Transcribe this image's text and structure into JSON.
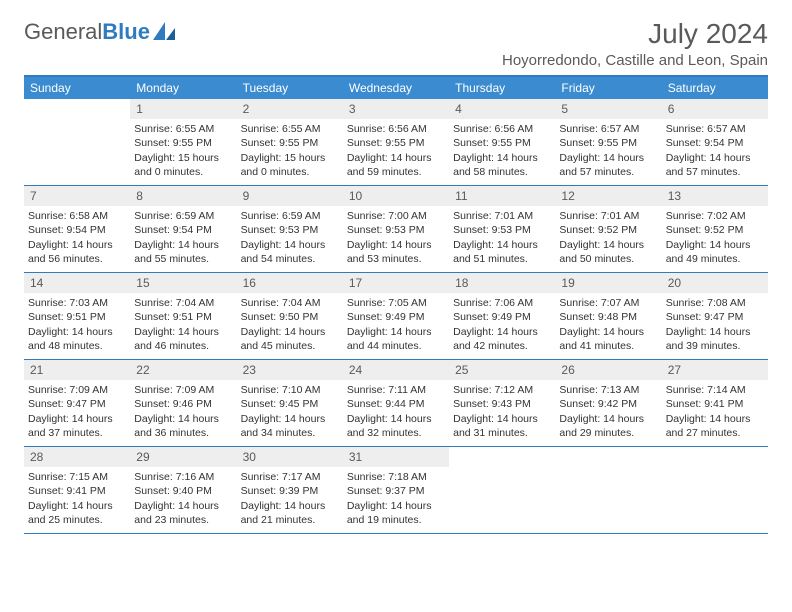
{
  "brand": {
    "part1": "General",
    "part2": "Blue"
  },
  "title": "July 2024",
  "location": "Hoyorredondo, Castille and Leon, Spain",
  "colors": {
    "header_bg": "#3b8bd0",
    "rule": "#2f7bbf",
    "daynum_bg": "#eeeeee",
    "text": "#333333",
    "muted": "#5a5a5a"
  },
  "typography": {
    "title_fontsize": 28,
    "body_fontsize": 10.5
  },
  "dow": [
    "Sunday",
    "Monday",
    "Tuesday",
    "Wednesday",
    "Thursday",
    "Friday",
    "Saturday"
  ],
  "weeks": [
    [
      null,
      {
        "n": "1",
        "sr": "6:55 AM",
        "ss": "9:55 PM",
        "dl": "15 hours and 0 minutes."
      },
      {
        "n": "2",
        "sr": "6:55 AM",
        "ss": "9:55 PM",
        "dl": "15 hours and 0 minutes."
      },
      {
        "n": "3",
        "sr": "6:56 AM",
        "ss": "9:55 PM",
        "dl": "14 hours and 59 minutes."
      },
      {
        "n": "4",
        "sr": "6:56 AM",
        "ss": "9:55 PM",
        "dl": "14 hours and 58 minutes."
      },
      {
        "n": "5",
        "sr": "6:57 AM",
        "ss": "9:55 PM",
        "dl": "14 hours and 57 minutes."
      },
      {
        "n": "6",
        "sr": "6:57 AM",
        "ss": "9:54 PM",
        "dl": "14 hours and 57 minutes."
      }
    ],
    [
      {
        "n": "7",
        "sr": "6:58 AM",
        "ss": "9:54 PM",
        "dl": "14 hours and 56 minutes."
      },
      {
        "n": "8",
        "sr": "6:59 AM",
        "ss": "9:54 PM",
        "dl": "14 hours and 55 minutes."
      },
      {
        "n": "9",
        "sr": "6:59 AM",
        "ss": "9:53 PM",
        "dl": "14 hours and 54 minutes."
      },
      {
        "n": "10",
        "sr": "7:00 AM",
        "ss": "9:53 PM",
        "dl": "14 hours and 53 minutes."
      },
      {
        "n": "11",
        "sr": "7:01 AM",
        "ss": "9:53 PM",
        "dl": "14 hours and 51 minutes."
      },
      {
        "n": "12",
        "sr": "7:01 AM",
        "ss": "9:52 PM",
        "dl": "14 hours and 50 minutes."
      },
      {
        "n": "13",
        "sr": "7:02 AM",
        "ss": "9:52 PM",
        "dl": "14 hours and 49 minutes."
      }
    ],
    [
      {
        "n": "14",
        "sr": "7:03 AM",
        "ss": "9:51 PM",
        "dl": "14 hours and 48 minutes."
      },
      {
        "n": "15",
        "sr": "7:04 AM",
        "ss": "9:51 PM",
        "dl": "14 hours and 46 minutes."
      },
      {
        "n": "16",
        "sr": "7:04 AM",
        "ss": "9:50 PM",
        "dl": "14 hours and 45 minutes."
      },
      {
        "n": "17",
        "sr": "7:05 AM",
        "ss": "9:49 PM",
        "dl": "14 hours and 44 minutes."
      },
      {
        "n": "18",
        "sr": "7:06 AM",
        "ss": "9:49 PM",
        "dl": "14 hours and 42 minutes."
      },
      {
        "n": "19",
        "sr": "7:07 AM",
        "ss": "9:48 PM",
        "dl": "14 hours and 41 minutes."
      },
      {
        "n": "20",
        "sr": "7:08 AM",
        "ss": "9:47 PM",
        "dl": "14 hours and 39 minutes."
      }
    ],
    [
      {
        "n": "21",
        "sr": "7:09 AM",
        "ss": "9:47 PM",
        "dl": "14 hours and 37 minutes."
      },
      {
        "n": "22",
        "sr": "7:09 AM",
        "ss": "9:46 PM",
        "dl": "14 hours and 36 minutes."
      },
      {
        "n": "23",
        "sr": "7:10 AM",
        "ss": "9:45 PM",
        "dl": "14 hours and 34 minutes."
      },
      {
        "n": "24",
        "sr": "7:11 AM",
        "ss": "9:44 PM",
        "dl": "14 hours and 32 minutes."
      },
      {
        "n": "25",
        "sr": "7:12 AM",
        "ss": "9:43 PM",
        "dl": "14 hours and 31 minutes."
      },
      {
        "n": "26",
        "sr": "7:13 AM",
        "ss": "9:42 PM",
        "dl": "14 hours and 29 minutes."
      },
      {
        "n": "27",
        "sr": "7:14 AM",
        "ss": "9:41 PM",
        "dl": "14 hours and 27 minutes."
      }
    ],
    [
      {
        "n": "28",
        "sr": "7:15 AM",
        "ss": "9:41 PM",
        "dl": "14 hours and 25 minutes."
      },
      {
        "n": "29",
        "sr": "7:16 AM",
        "ss": "9:40 PM",
        "dl": "14 hours and 23 minutes."
      },
      {
        "n": "30",
        "sr": "7:17 AM",
        "ss": "9:39 PM",
        "dl": "14 hours and 21 minutes."
      },
      {
        "n": "31",
        "sr": "7:18 AM",
        "ss": "9:37 PM",
        "dl": "14 hours and 19 minutes."
      },
      null,
      null,
      null
    ]
  ],
  "labels": {
    "sunrise": "Sunrise: ",
    "sunset": "Sunset: ",
    "daylight": "Daylight: "
  }
}
